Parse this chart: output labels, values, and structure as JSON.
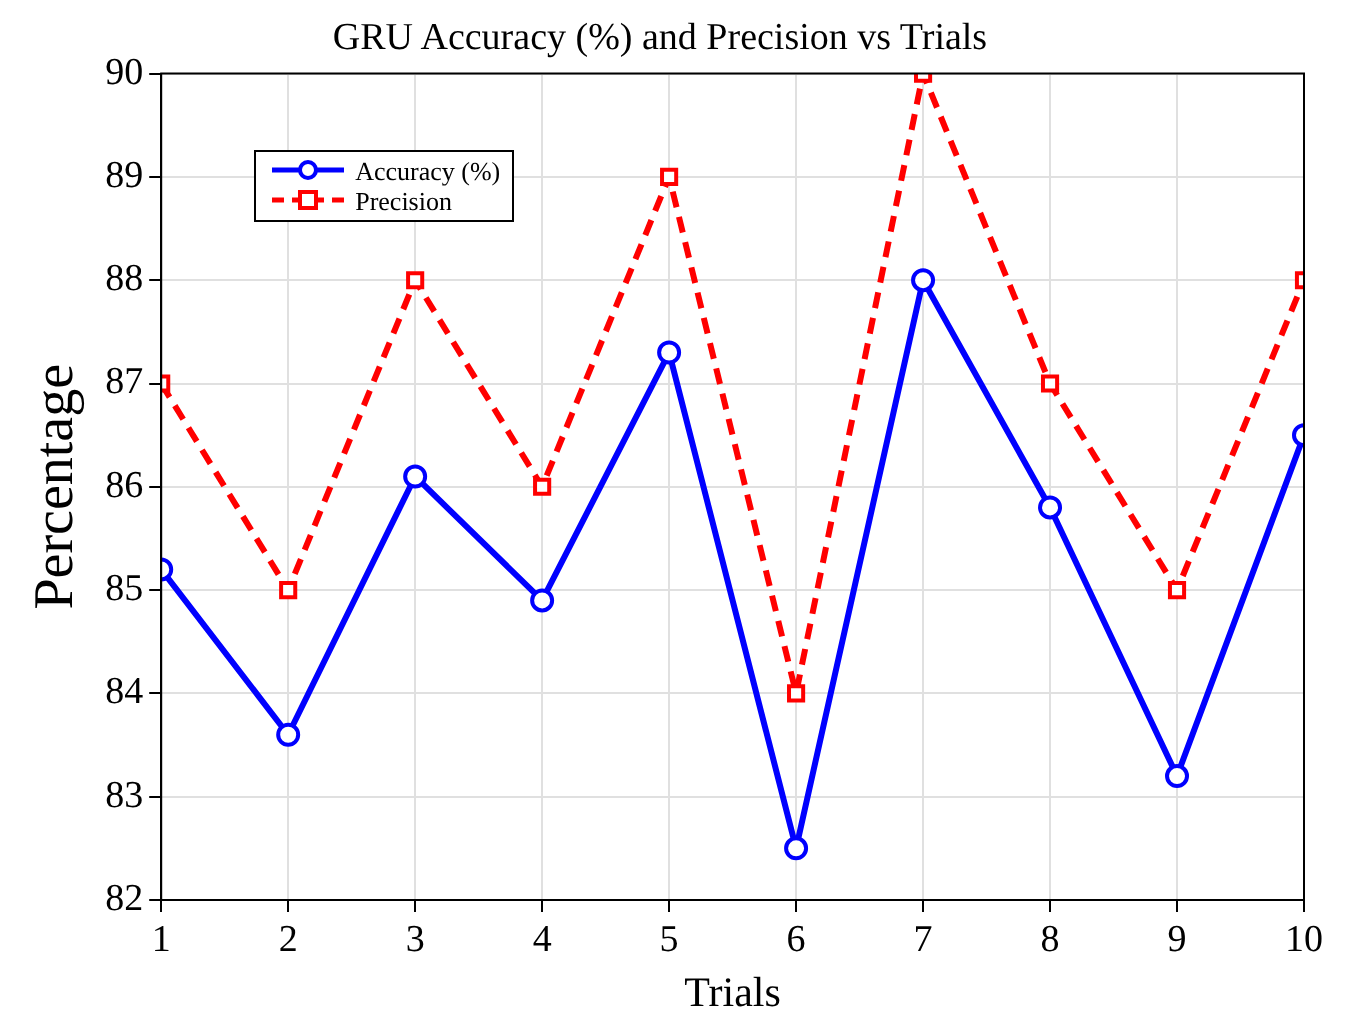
{
  "chart_data": {
    "type": "line",
    "title": "GRU Accuracy (%) and Precision vs Trials",
    "xlabel": "Trials",
    "ylabel": "Percentage",
    "x": [
      1,
      2,
      3,
      4,
      5,
      6,
      7,
      8,
      9,
      10
    ],
    "series": [
      {
        "name": "Accuracy (%)",
        "color": "#0000ff",
        "marker": "circle",
        "line_style": "solid",
        "values": [
          85.2,
          83.6,
          86.1,
          84.9,
          87.3,
          82.5,
          88.0,
          85.8,
          83.2,
          86.5
        ]
      },
      {
        "name": "Precision",
        "color": "#ff0000",
        "marker": "square",
        "line_style": "dashed",
        "values": [
          87,
          85,
          88,
          86,
          89,
          84,
          90,
          87,
          85,
          88
        ]
      }
    ],
    "xlim": [
      1,
      10
    ],
    "xticks": [
      1,
      2,
      3,
      4,
      5,
      6,
      7,
      8,
      9,
      10
    ],
    "ylim": [
      82,
      90
    ],
    "yticks": [
      82,
      83,
      84,
      85,
      86,
      87,
      88,
      89,
      90
    ],
    "grid": true,
    "legend": "top left"
  }
}
